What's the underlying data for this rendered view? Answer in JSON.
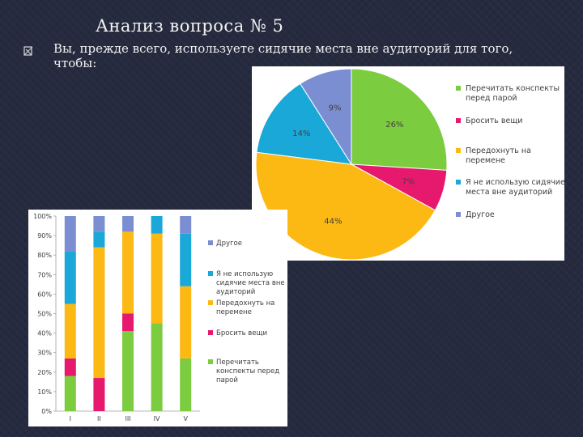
{
  "slide": {
    "title": "Анализ вопроса № 5",
    "question": "Вы, прежде всего, используете сидячие места вне аудиторий для того, чтобы:"
  },
  "icons": {
    "bullet": "bullet-icon"
  },
  "chart_data": [
    {
      "type": "pie",
      "categories": [
        "Перечитать конспекты перед парой",
        "Бросить вещи",
        "Передохнуть на перемене",
        "Я не использую сидячие места вне аудиторий",
        "Другое"
      ],
      "values": [
        26,
        7,
        44,
        14,
        9
      ],
      "labels": [
        "26%",
        "7%",
        "44%",
        "14%",
        "9%"
      ],
      "colors": [
        "#7ccc3f",
        "#e6196e",
        "#fdb913",
        "#1aa8d8",
        "#7b8ed2"
      ],
      "legend": {
        "position": "right",
        "lines": [
          [
            "Перечитать конспекты",
            "перед парой"
          ],
          [
            "Бросить вещи"
          ],
          [
            "Передохнуть на",
            "перемене"
          ],
          [
            "Я не использую сидячие",
            "места вне аудиторий"
          ],
          [
            "Другое"
          ]
        ]
      }
    },
    {
      "type": "bar",
      "stacked": true,
      "categories": [
        "I",
        "II",
        "III",
        "IV",
        "V"
      ],
      "series": [
        {
          "name": "Перечитать конспекты перед парой",
          "color": "#7ccc3f",
          "values": [
            18,
            0,
            41,
            45,
            27
          ]
        },
        {
          "name": "Бросить вещи",
          "color": "#e6196e",
          "values": [
            9,
            17,
            9,
            0,
            0
          ]
        },
        {
          "name": "Передохнуть на перемене",
          "color": "#fdb913",
          "values": [
            28,
            67,
            42,
            46,
            37
          ]
        },
        {
          "name": "Я не использую сидячие места вне аудиторий",
          "color": "#1aa8d8",
          "values": [
            27,
            8,
            0,
            9,
            27
          ]
        },
        {
          "name": "Другое",
          "color": "#7b8ed2",
          "values": [
            18,
            8,
            8,
            0,
            9
          ]
        }
      ],
      "ylim": [
        0,
        100
      ],
      "yticks": [
        "0%",
        "10%",
        "20%",
        "30%",
        "40%",
        "50%",
        "60%",
        "70%",
        "80%",
        "90%",
        "100%"
      ],
      "legend": {
        "position": "right",
        "order_top_to_bottom": [
          4,
          3,
          2,
          1,
          0
        ],
        "lines": {
          "4": [
            "Другое"
          ],
          "3": [
            "Я не использую",
            "сидячие места вне",
            "аудиторий"
          ],
          "2": [
            "Передохнуть на",
            "перемене"
          ],
          "1": [
            "Бросить вещи"
          ],
          "0": [
            "Перечитать",
            "конспекты перед",
            "парой"
          ]
        }
      }
    }
  ]
}
